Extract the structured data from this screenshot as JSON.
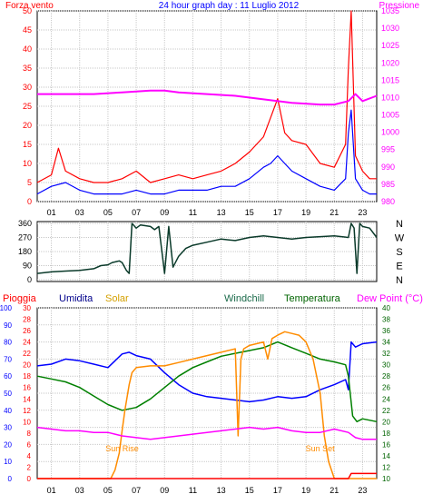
{
  "chart_data": [
    {
      "type": "line",
      "title": "24 hour graph day : 11 Luglio 2012",
      "left_axis_label": "Forza vento",
      "right_axis_label": "Pressione",
      "x_tick_labels": [
        "01",
        "03",
        "05",
        "07",
        "09",
        "11",
        "13",
        "15",
        "17",
        "19",
        "21",
        "23"
      ],
      "y_left_ticks": [
        0,
        5,
        10,
        15,
        20,
        25,
        30,
        35,
        40,
        45,
        50
      ],
      "y_right_ticks": [
        980,
        985,
        990,
        995,
        1000,
        1005,
        1010,
        1015,
        1020,
        1025,
        1030,
        1035
      ],
      "x_range_hours": [
        0,
        24
      ],
      "ylim_left": [
        0,
        50
      ],
      "ylim_right": [
        980,
        1035
      ],
      "grid": true,
      "series": [
        {
          "color": "#ff0000",
          "axis": "left",
          "x": [
            0,
            1,
            1.5,
            2,
            3,
            4,
            5,
            6,
            7,
            8,
            9,
            10,
            11,
            12,
            13,
            14,
            15,
            16,
            16.5,
            17,
            17.5,
            18,
            19,
            20,
            21,
            21.8,
            22,
            22.2,
            22.5,
            23,
            23.5,
            24
          ],
          "y": [
            5,
            7,
            14,
            8,
            6,
            5,
            5,
            6,
            8,
            5,
            6,
            7,
            6,
            7,
            8,
            10,
            13,
            17,
            22,
            27,
            18,
            16,
            15,
            10,
            9,
            15,
            35,
            50,
            12,
            8,
            6,
            6
          ]
        },
        {
          "color": "#0000ff",
          "axis": "left",
          "x": [
            0,
            1,
            2,
            3,
            4,
            5,
            6,
            7,
            8,
            9,
            10,
            11,
            12,
            13,
            14,
            15,
            16,
            16.5,
            17,
            17.5,
            18,
            19,
            20,
            21,
            21.8,
            22,
            22.2,
            22.5,
            23,
            23.5,
            24
          ],
          "y": [
            2,
            4,
            5,
            3,
            2,
            2,
            2,
            3,
            2,
            2,
            3,
            3,
            3,
            4,
            4,
            6,
            9,
            10,
            12,
            10,
            8,
            6,
            4,
            3,
            6,
            18,
            24,
            6,
            3,
            2,
            2
          ]
        },
        {
          "color": "#ff00ff",
          "axis": "right",
          "x": [
            0,
            2,
            4,
            6,
            8,
            9,
            10,
            12,
            14,
            16,
            18,
            20,
            21,
            22,
            22.5,
            23,
            24
          ],
          "y": [
            1011,
            1011,
            1011,
            1011.5,
            1012,
            1012,
            1011.5,
            1011,
            1010.5,
            1009.5,
            1008.5,
            1008,
            1008,
            1009,
            1011,
            1009,
            1010.5
          ]
        }
      ]
    },
    {
      "type": "line",
      "direction_labels": [
        "N",
        "W",
        "S",
        "E",
        "N"
      ],
      "y_ticks": [
        0,
        90,
        180,
        270,
        360
      ],
      "ylim": [
        0,
        360
      ],
      "x_range_hours": [
        0,
        24
      ],
      "grid": true,
      "series": [
        {
          "color": "#0a3a2a",
          "x": [
            0,
            1,
            2,
            3,
            4,
            4.5,
            5,
            5.3,
            5.8,
            6,
            6.3,
            6.5,
            6.7,
            7,
            7.3,
            8,
            8.3,
            8.6,
            9,
            9.3,
            9.6,
            10,
            10.5,
            11,
            12,
            13,
            14,
            15,
            16,
            17,
            18,
            19,
            20,
            21,
            22,
            22.2,
            22.4,
            22.6,
            22.8,
            23,
            23.5,
            24
          ],
          "y": [
            40,
            50,
            55,
            60,
            70,
            90,
            95,
            110,
            120,
            110,
            60,
            40,
            360,
            330,
            350,
            340,
            320,
            340,
            40,
            340,
            80,
            150,
            200,
            220,
            240,
            260,
            250,
            270,
            280,
            270,
            260,
            270,
            275,
            280,
            270,
            360,
            330,
            40,
            360,
            340,
            330,
            270
          ]
        }
      ]
    },
    {
      "type": "line",
      "legend": [
        {
          "label": "Pioggia",
          "color": "#ff0000"
        },
        {
          "label": "Umidita",
          "color": "#00008b"
        },
        {
          "label": "Solar",
          "color": "#d4a000"
        },
        {
          "label": "Windchill",
          "color": "#1a6a4a"
        },
        {
          "label": "Temperatura",
          "color": "#006400"
        },
        {
          "label": "Dew Point (°C)",
          "color": "#ff00ff"
        }
      ],
      "annotations": [
        "Sun Rise",
        "Sun Set"
      ],
      "axis_0_100_ticks": [
        0,
        10,
        20,
        30,
        40,
        50,
        60,
        70,
        80,
        90,
        100
      ],
      "axis_0_30_ticks": [
        0,
        2,
        4,
        6,
        8,
        10,
        12,
        14,
        16,
        18,
        20,
        22,
        24,
        26,
        28,
        30
      ],
      "axis_right_ticks": [
        10,
        12,
        14,
        16,
        18,
        20,
        22,
        24,
        26,
        28,
        30,
        32,
        34,
        36,
        38,
        40
      ],
      "ylim_left": [
        0,
        100
      ],
      "ylim_right": [
        10,
        40
      ],
      "x_range_hours": [
        0,
        24
      ],
      "grid": true,
      "series": [
        {
          "color": "#0000ff",
          "axis": "left",
          "x": [
            0,
            1,
            2,
            3,
            4,
            5,
            6,
            6.5,
            7,
            8,
            9,
            10,
            11,
            12,
            13,
            14,
            15,
            16,
            17,
            18,
            19,
            20,
            21,
            21.8,
            22,
            22.2,
            22.5,
            23,
            24
          ],
          "y": [
            66,
            67,
            70,
            69,
            67,
            65,
            73,
            74,
            72,
            70,
            62,
            55,
            50,
            48,
            47,
            46,
            45,
            46,
            48,
            47,
            48,
            52,
            55,
            58,
            52,
            80,
            77,
            79,
            80
          ]
        },
        {
          "color": "#008000",
          "axis": "right",
          "x": [
            0,
            1,
            2,
            3,
            4,
            5,
            6,
            7,
            8,
            9,
            10,
            11,
            12,
            13,
            14,
            15,
            16,
            17,
            18,
            19,
            20,
            21,
            21.8,
            22,
            22.3,
            22.6,
            23,
            24
          ],
          "y": [
            28,
            27.5,
            27,
            26,
            24.5,
            23,
            22,
            22.5,
            24,
            26,
            28,
            29.5,
            30.5,
            31.5,
            32,
            32.5,
            33,
            34,
            33,
            32,
            31,
            30.5,
            30,
            28,
            21,
            20,
            20.5,
            20
          ]
        },
        {
          "color": "#ff8c00",
          "axis": "left",
          "x": [
            0,
            5.2,
            5.5,
            5.8,
            6,
            6.2,
            6.5,
            6.7,
            7,
            8,
            9,
            10,
            11,
            12,
            13,
            14,
            14.2,
            14.4,
            14.6,
            15,
            16,
            16.3,
            16.6,
            17,
            17.5,
            18,
            18.5,
            19,
            19.5,
            20,
            20.3,
            20.6,
            21,
            24
          ],
          "y": [
            0,
            0,
            5,
            15,
            28,
            40,
            55,
            62,
            65,
            66,
            66,
            68,
            70,
            72,
            74,
            76,
            25,
            70,
            76,
            78,
            80,
            70,
            82,
            84,
            86,
            85,
            84,
            80,
            70,
            50,
            25,
            10,
            0,
            0
          ]
        },
        {
          "color": "#ff00ff",
          "axis": "left",
          "x": [
            0,
            1,
            2,
            3,
            4,
            5,
            6,
            7,
            8,
            9,
            10,
            11,
            12,
            13,
            14,
            15,
            16,
            17,
            18,
            19,
            20,
            21,
            22,
            22.5,
            23,
            24
          ],
          "y": [
            30,
            29,
            28,
            28,
            27,
            27,
            25,
            24,
            23,
            24,
            25,
            26,
            27,
            28,
            29,
            30,
            29,
            30,
            28,
            27,
            27,
            29,
            27,
            24,
            23,
            23
          ]
        },
        {
          "color": "#ff0000",
          "axis": "left",
          "x": [
            0,
            22,
            22.2,
            24
          ],
          "y": [
            0,
            0,
            3,
            3
          ]
        }
      ]
    }
  ]
}
